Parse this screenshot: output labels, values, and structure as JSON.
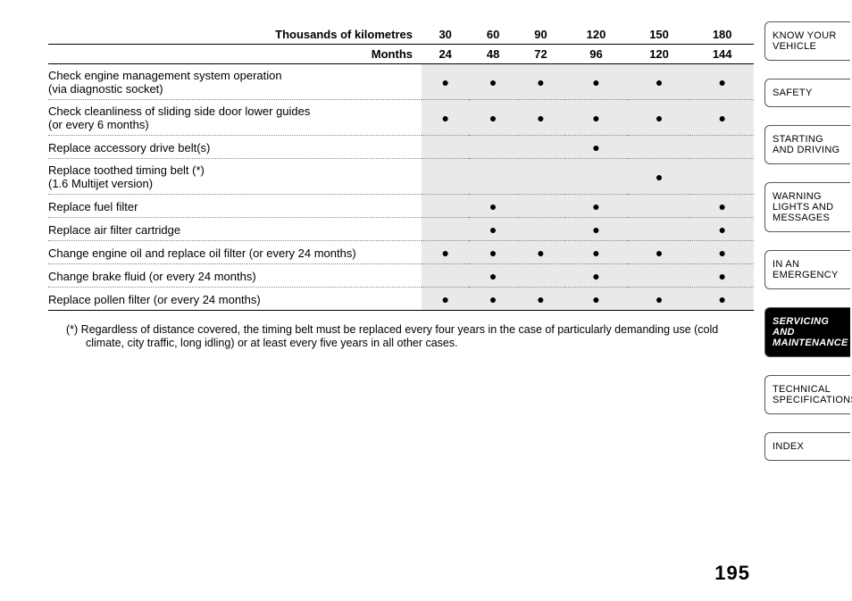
{
  "header": {
    "km_label": "Thousands of kilometres",
    "months_label": "Months",
    "km": [
      "30",
      "60",
      "90",
      "120",
      "150",
      "180"
    ],
    "months": [
      "24",
      "48",
      "72",
      "96",
      "120",
      "144"
    ]
  },
  "rows": [
    {
      "task": "Check engine management system operation\n(via diagnostic socket)",
      "marks": [
        1,
        1,
        1,
        1,
        1,
        1
      ]
    },
    {
      "task": "Check cleanliness of sliding side door lower guides\n(or every 6 months)",
      "marks": [
        1,
        1,
        1,
        1,
        1,
        1
      ]
    },
    {
      "task": "Replace accessory drive belt(s)",
      "marks": [
        0,
        0,
        0,
        1,
        0,
        0
      ]
    },
    {
      "task": "Replace toothed timing belt (*)\n(1.6 Multijet version)",
      "marks": [
        0,
        0,
        0,
        0,
        1,
        0
      ]
    },
    {
      "task": "Replace fuel filter",
      "marks": [
        0,
        1,
        0,
        1,
        0,
        1
      ]
    },
    {
      "task": "Replace air filter cartridge",
      "marks": [
        0,
        1,
        0,
        1,
        0,
        1
      ]
    },
    {
      "task": "Change engine oil and replace oil filter (or every 24 months)",
      "marks": [
        1,
        1,
        1,
        1,
        1,
        1
      ]
    },
    {
      "task": "Change brake fluid (or every 24 months)",
      "marks": [
        0,
        1,
        0,
        1,
        0,
        1
      ]
    },
    {
      "task": "Replace pollen filter (or every 24 months)",
      "marks": [
        1,
        1,
        1,
        1,
        1,
        1
      ]
    }
  ],
  "footnote": "(*) Regardless of distance covered, the timing belt must be replaced every four years in the case of particularly demanding use (cold climate, city traffic, long idling) or at least every five years in all other cases.",
  "page_number": "195",
  "tabs": [
    {
      "label": "KNOW YOUR VEHICLE",
      "active": false
    },
    {
      "label": "SAFETY",
      "active": false
    },
    {
      "label": "STARTING AND DRIVING",
      "active": false
    },
    {
      "label": "WARNING LIGHTS AND MESSAGES",
      "active": false
    },
    {
      "label": "IN AN EMERGENCY",
      "active": false
    },
    {
      "label": "SERVICING AND MAINTENANCE",
      "active": true
    },
    {
      "label": "TECHNICAL SPECIFICATIONS",
      "active": false
    },
    {
      "label": "INDEX",
      "active": false
    }
  ],
  "dot": "●"
}
